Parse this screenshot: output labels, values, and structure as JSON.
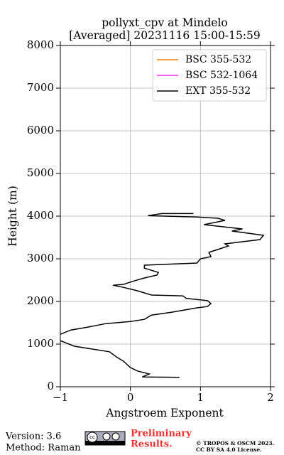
{
  "chart_data": {
    "type": "line",
    "title": "pollyxt_cpv at Mindelo",
    "subtitle": "[Averaged] 20231116 15:00-15:59",
    "x_label": "Angstroem Exponent",
    "y_label": "Height (m)",
    "xlim": [
      -1,
      2
    ],
    "xticks": [
      {
        "value": -1,
        "label": "−1"
      },
      0,
      1,
      2
    ],
    "ylim": [
      0,
      8000
    ],
    "yticks": [
      0,
      1000,
      2000,
      3000,
      4000,
      5000,
      6000,
      7000,
      8000
    ],
    "grid": true,
    "legend": "upper right",
    "series": [
      {
        "name": "BSC 355-532",
        "color": "#ff7f0e",
        "x": [],
        "values": []
      },
      {
        "name": "BSC 532-1064",
        "color": "#f032e6",
        "x": [],
        "values": []
      },
      {
        "name": "EXT 355-532",
        "color": "#000000",
        "x": [
          0.7,
          0.17,
          0.27,
          0.1,
          0,
          -0.1,
          -0.2,
          -0.3,
          -0.8,
          -1,
          null,
          -1,
          -0.85,
          -0.6,
          -0.35,
          0,
          0.2,
          0.3,
          0.6,
          0.95,
          1.1,
          1.15,
          1.1,
          0.8,
          0.75,
          0.3,
          0.1,
          -0.1,
          -0.25,
          -0.1,
          0.05,
          0.2,
          0.38,
          0.4,
          0.2,
          0.2,
          0.95,
          1.0,
          1.15,
          1.12,
          1.4,
          1.35,
          1.85,
          1.9,
          1.45,
          1.6,
          1.05,
          1.35,
          1.25,
          0.95,
          0.25,
          0.45,
          0.9
        ],
        "values": [
          220,
          230,
          300,
          370,
          450,
          600,
          700,
          820,
          950,
          1080,
          null,
          1230,
          1330,
          1400,
          1480,
          1530,
          1580,
          1680,
          1750,
          1850,
          1880,
          1950,
          2020,
          2070,
          2130,
          2150,
          2250,
          2330,
          2380,
          2400,
          2480,
          2550,
          2620,
          2680,
          2780,
          2850,
          2900,
          3000,
          3050,
          3150,
          3300,
          3350,
          3450,
          3550,
          3650,
          3700,
          3800,
          3900,
          3950,
          3980,
          4010,
          4060,
          4060
        ]
      }
    ]
  },
  "footer": {
    "version": "Version: 3.6",
    "method": "Method: Raman",
    "preliminary": "Preliminary",
    "results": "Results.",
    "copyright": "© TROPOS & OSCM 2023.",
    "license": "CC BY SA 4.0 License."
  }
}
